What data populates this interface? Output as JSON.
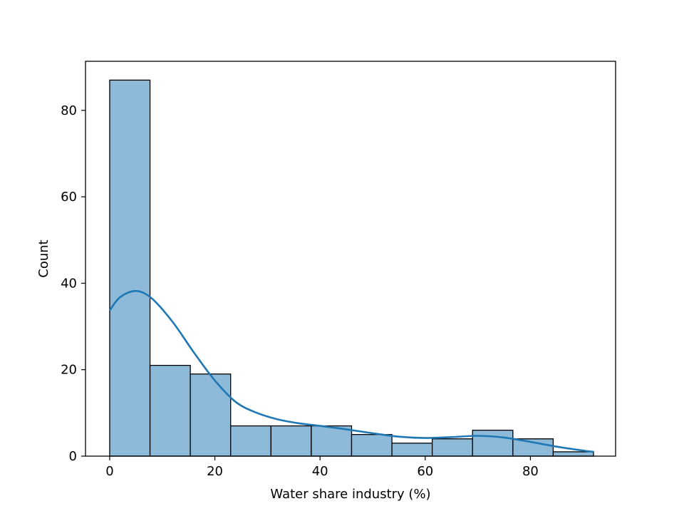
{
  "chart_data": {
    "type": "bar",
    "subtype": "histogram",
    "title": "",
    "xlabel": "Water share industry (%)",
    "ylabel": "Count",
    "xlim": [
      -4.6,
      96.2
    ],
    "ylim": [
      0,
      91.35
    ],
    "xticks": [
      0,
      20,
      40,
      60,
      80
    ],
    "yticks": [
      0,
      20,
      40,
      60,
      80
    ],
    "grid": false,
    "bin_edges": [
      0,
      7.67,
      15.33,
      23.0,
      30.67,
      38.33,
      46.0,
      53.67,
      61.33,
      69.0,
      76.67,
      84.33,
      92.0
    ],
    "values": [
      87,
      21,
      19,
      7,
      7,
      7,
      5,
      3,
      4,
      6,
      4,
      1
    ],
    "kde": {
      "x": [
        0,
        2,
        5,
        8,
        12,
        16,
        20,
        24,
        28,
        32,
        36,
        40,
        45,
        50,
        55,
        60,
        65,
        70,
        75,
        80,
        85,
        90,
        92
      ],
      "y": [
        33.7,
        36.8,
        38.2,
        36.5,
        31.0,
        24.0,
        17.5,
        12.5,
        10.0,
        8.5,
        7.6,
        7.0,
        6.2,
        5.3,
        4.5,
        4.2,
        4.4,
        4.7,
        4.3,
        3.3,
        2.2,
        1.3,
        1.0
      ]
    },
    "colors": {
      "bar_fill": "#8ebad9",
      "bar_edge": "#000000",
      "kde_line": "#1f77b4"
    }
  }
}
